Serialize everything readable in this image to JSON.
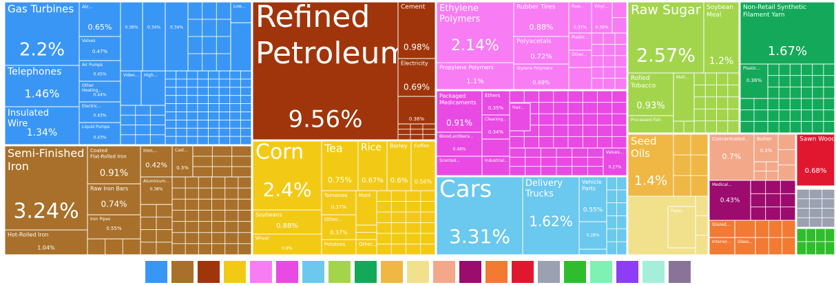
{
  "chart_data": {
    "type": "treemap",
    "groups": [
      {
        "color": "#3a96f5",
        "items": [
          {
            "name": "Gas Turbines",
            "value": 2.2,
            "value_label": "2.2%"
          },
          {
            "name": "Telephones",
            "value": 1.46,
            "value_label": "1.46%"
          },
          {
            "name": "Insulated Wire",
            "value": 1.34,
            "value_label": "1.34%"
          },
          {
            "name": "Air...",
            "value": 0.65,
            "value_label": "0.65%"
          },
          {
            "name": "Valves",
            "value": 0.47,
            "value_label": "0.47%"
          },
          {
            "name": "Air Pumps",
            "value": 0.45,
            "value_label": "0.45%"
          },
          {
            "name": "Other Heating...",
            "value": 0.44,
            "value_label": "0.44%"
          },
          {
            "name": "Electric...",
            "value": 0.43,
            "value_label": "0.43%"
          },
          {
            "name": "Liquid Pumps",
            "value": 0.43,
            "value_label": "0.43%"
          },
          {
            "name": null,
            "value": 0.36,
            "value_label": "0.36%"
          },
          {
            "name": null,
            "value": 0.34,
            "value_label": "0.34%"
          },
          {
            "name": null,
            "value": 0.34,
            "value_label": "0.34%"
          },
          {
            "name": "Low..."
          },
          {
            "name": "Video..."
          },
          {
            "name": "High..."
          }
        ]
      },
      {
        "color": "#a8702a",
        "items": [
          {
            "name": "Semi-Finished Iron",
            "value": 3.24,
            "value_label": "3.24%"
          },
          {
            "name": "Hot-Rolled Iron",
            "value": 1.04,
            "value_label": "1.04%"
          },
          {
            "name": "Coated Flat-Rolled Iron",
            "value": 0.91,
            "value_label": "0.91%"
          },
          {
            "name": "Raw Iron Bars",
            "value": 0.74,
            "value_label": "0.74%"
          },
          {
            "name": "Iron Pipes",
            "value": 0.55,
            "value_label": "0.55%"
          },
          {
            "name": "Iron...",
            "value": 0.42,
            "value_label": "0.42%"
          },
          {
            "name": "Aluminium...",
            "value": 0.38,
            "value_label": "0.38%"
          },
          {
            "name": "Cast...",
            "value": 0.3,
            "value_label": "0.3%"
          }
        ]
      },
      {
        "color": "#a0350b",
        "items": [
          {
            "name": "Refined Petroleum",
            "value": 9.56,
            "value_label": "9.56%"
          },
          {
            "name": "Cement",
            "value": 0.98,
            "value_label": "0.98%"
          },
          {
            "name": "Electricity",
            "value": 0.69,
            "value_label": "0.69%"
          },
          {
            "name": null,
            "value": 0.36,
            "value_label": "0.36%"
          }
        ]
      },
      {
        "color": "#f2ca16",
        "items": [
          {
            "name": "Corn",
            "value": 2.4,
            "value_label": "2.4%"
          },
          {
            "name": "Soybeans",
            "value": 0.88,
            "value_label": "0.88%"
          },
          {
            "name": "Wheat",
            "value": 0.8,
            "value_label": "0.8%"
          },
          {
            "name": "Tea",
            "value": 0.75,
            "value_label": "0.75%"
          },
          {
            "name": "Rice",
            "value": 0.67,
            "value_label": "0.67%"
          },
          {
            "name": "Barley",
            "value": 0.6,
            "value_label": "0.6%"
          },
          {
            "name": "Coffee",
            "value": 0.56,
            "value_label": "0.56%"
          },
          {
            "name": "Tomatoes",
            "value": 0.37,
            "value_label": "0.37%"
          },
          {
            "name": "Other...",
            "value": 0.37,
            "value_label": "0.37%"
          },
          {
            "name": "Maté"
          },
          {
            "name": "Potatoes"
          },
          {
            "name": "Other..."
          }
        ]
      },
      {
        "color": "#f87cf4",
        "items": [
          {
            "name": "Ethylene Polymers",
            "value": 2.14,
            "value_label": "2.14%"
          },
          {
            "name": "Propylene Polymers",
            "value": 1.1,
            "value_label": "1.1%"
          },
          {
            "name": "Rubber Tires",
            "value": 0.88,
            "value_label": "0.88%"
          },
          {
            "name": "Polyacetals",
            "value": 0.72,
            "value_label": "0.72%"
          },
          {
            "name": "Styrene Polymers",
            "value": 0.69,
            "value_label": "0.69%"
          },
          {
            "name": "Raw...",
            "value": 0.37,
            "value_label": "0.37%"
          },
          {
            "name": "Vinyl...",
            "value": 0.36,
            "value_label": "0.36%"
          },
          {
            "name": "Plastic..."
          },
          {
            "name": "Other..."
          }
        ]
      },
      {
        "color": "#e84ae3",
        "items": [
          {
            "name": "Packaged Medicaments",
            "value": 0.91,
            "value_label": "0.91%"
          },
          {
            "name": "Blood,antibera...",
            "value": 0.48,
            "value_label": "0.48%"
          },
          {
            "name": "Scented..."
          },
          {
            "name": "Ethers",
            "value": 0.35,
            "value_label": "0.35%"
          },
          {
            "name": "Cleaning...",
            "value": 0.34,
            "value_label": "0.34%"
          },
          {
            "name": "Hair..."
          },
          {
            "name": "Industrial..."
          },
          {
            "name": "Values...",
            "value": 0.27,
            "value_label": "0.27%"
          }
        ]
      },
      {
        "color": "#6bc8ef",
        "items": [
          {
            "name": "Cars",
            "value": 3.31,
            "value_label": "3.31%"
          },
          {
            "name": "Delivery Trucks",
            "value": 1.62,
            "value_label": "1.62%"
          },
          {
            "name": "Vehicle Parts",
            "value": 0.55,
            "value_label": "0.55%"
          },
          {
            "name": null,
            "value": 0.28,
            "value_label": "0.28%"
          }
        ]
      },
      {
        "color": "#a3d54c",
        "items": [
          {
            "name": "Raw Sugar",
            "value": 2.57,
            "value_label": "2.57%"
          },
          {
            "name": "Soybean Meal",
            "value": 1.2,
            "value_label": "1.2%"
          },
          {
            "name": "Rolled Tobacco",
            "value": 0.93,
            "value_label": "0.93%"
          },
          {
            "name": "Processed Fish"
          },
          {
            "name": "Malt..."
          }
        ]
      },
      {
        "color": "#14a95a",
        "items": [
          {
            "name": "Non-Retail Synthetic Filament Yarn",
            "value": 1.67,
            "value_label": "1.67%"
          },
          {
            "name": "Plastic...",
            "value": 0.36,
            "value_label": "0.36%"
          }
        ]
      },
      {
        "color": "#efb744",
        "items": [
          {
            "name": "Seed Oils",
            "value": 1.4,
            "value_label": "1.4%"
          }
        ]
      },
      {
        "color": "#f1e08c",
        "items": [
          {
            "name": "Paper..."
          }
        ]
      },
      {
        "color": "#f3a88a",
        "items": [
          {
            "name": "Concentrated...",
            "value": 0.7,
            "value_label": "0.7%"
          },
          {
            "name": "Butter",
            "value": 0.3,
            "value_label": "0.3%"
          }
        ]
      },
      {
        "color": "#9c0b6e",
        "items": [
          {
            "name": "Medical...",
            "value": 0.43,
            "value_label": "0.43%"
          }
        ]
      },
      {
        "color": "#f27a33",
        "items": [
          {
            "name": "Glazed..."
          },
          {
            "name": "Interior..."
          },
          {
            "name": "Glass..."
          }
        ]
      },
      {
        "color": "#e1172f",
        "items": [
          {
            "name": "Sawn Wood",
            "value": 0.68,
            "value_label": "0.68%"
          }
        ]
      },
      {
        "color": "#9ca1b1",
        "items": []
      },
      {
        "color": "#30bd2d",
        "items": []
      },
      {
        "color": "#7ff1b3",
        "items": []
      },
      {
        "color": "#8d3df5",
        "items": []
      },
      {
        "color": "#a5efd9",
        "items": []
      },
      {
        "color": "#8a7399",
        "items": []
      }
    ]
  }
}
